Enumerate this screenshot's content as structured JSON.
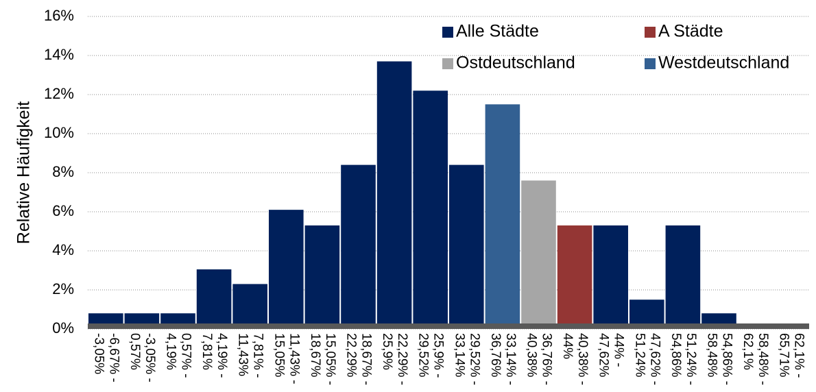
{
  "chart_data": {
    "type": "bar",
    "y_label": "Relative Häufigkeit",
    "categories": [
      "-6,67% -\n-3,05%",
      "-3,05% -\n0,57%",
      "0,57% -\n4,19%",
      "4,19% -\n7,81%",
      "7,81% -\n11,43%",
      "11,43% -\n15,05%",
      "15,05% -\n18,67%",
      "18,67% -\n22,29%",
      "22,29% -\n25,9%",
      "25,9% -\n29,52%",
      "29,52% -\n33,14%",
      "33,14% -\n36,76%",
      "36,76% -\n40,38%",
      "40,38% -\n44%",
      "44% -\n47,62%",
      "47,62% -\n51,24%",
      "51,24% -\n54,86%",
      "54,86% -\n58,48%",
      "58,48% -\n62,1%",
      "62,1% -\n65,71%"
    ],
    "series": [
      {
        "name": "Alle Städte",
        "color": "#00205b",
        "values": [
          0.8,
          0.8,
          0.8,
          3.05,
          2.3,
          6.1,
          5.3,
          8.4,
          13.7,
          12.2,
          8.4,
          null,
          null,
          null,
          5.3,
          1.5,
          5.3,
          0.8,
          0,
          0
        ]
      },
      {
        "name": "A Städte",
        "color": "#943634",
        "values": [
          null,
          null,
          null,
          null,
          null,
          null,
          null,
          null,
          null,
          null,
          null,
          null,
          null,
          5.3,
          null,
          null,
          null,
          null,
          null,
          null
        ]
      },
      {
        "name": "Ostdeutschland",
        "color": "#a6a6a6",
        "values": [
          null,
          null,
          null,
          null,
          null,
          null,
          null,
          null,
          null,
          null,
          null,
          null,
          7.6,
          null,
          null,
          null,
          null,
          null,
          null,
          null
        ]
      },
      {
        "name": "Westdeutschland",
        "color": "#336092",
        "values": [
          null,
          null,
          null,
          null,
          null,
          null,
          null,
          null,
          null,
          null,
          null,
          11.5,
          null,
          null,
          null,
          null,
          null,
          null,
          null,
          null
        ]
      }
    ],
    "ylim": [
      0,
      16
    ],
    "yticks": [
      {
        "value": 0,
        "label": "0%"
      },
      {
        "value": 2,
        "label": "2%"
      },
      {
        "value": 4,
        "label": "4%"
      },
      {
        "value": 6,
        "label": "6%"
      },
      {
        "value": 8,
        "label": "8%"
      },
      {
        "value": 10,
        "label": "10%"
      },
      {
        "value": 12,
        "label": "12%"
      },
      {
        "value": 14,
        "label": "14%"
      },
      {
        "value": 16,
        "label": "16%"
      }
    ],
    "grid": true
  }
}
